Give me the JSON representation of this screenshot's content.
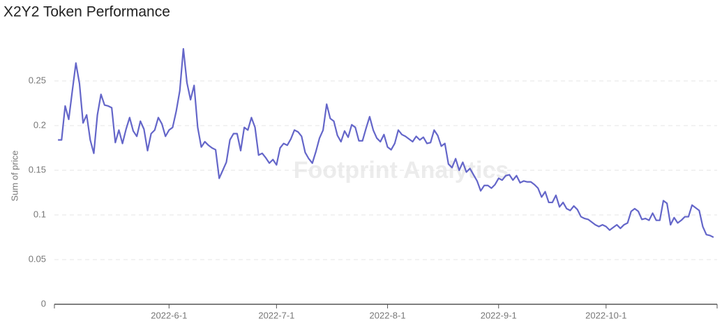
{
  "chart_data": {
    "type": "line",
    "title": "X2Y2 Token Performance",
    "ylabel": "Sum of price",
    "watermark": "Footprint Analytics",
    "x": [
      "2022-5-1",
      "2022-5-2",
      "2022-5-3",
      "2022-5-4",
      "2022-5-5",
      "2022-5-6",
      "2022-5-7",
      "2022-5-8",
      "2022-5-9",
      "2022-5-10",
      "2022-5-11",
      "2022-5-12",
      "2022-5-13",
      "2022-5-14",
      "2022-5-15",
      "2022-5-16",
      "2022-5-17",
      "2022-5-18",
      "2022-5-19",
      "2022-5-20",
      "2022-5-21",
      "2022-5-22",
      "2022-5-23",
      "2022-5-24",
      "2022-5-25",
      "2022-5-26",
      "2022-5-27",
      "2022-5-28",
      "2022-5-29",
      "2022-5-30",
      "2022-5-31",
      "2022-6-1",
      "2022-6-2",
      "2022-6-3",
      "2022-6-4",
      "2022-6-5",
      "2022-6-6",
      "2022-6-7",
      "2022-6-8",
      "2022-6-9",
      "2022-6-10",
      "2022-6-11",
      "2022-6-12",
      "2022-6-13",
      "2022-6-14",
      "2022-6-15",
      "2022-6-16",
      "2022-6-17",
      "2022-6-18",
      "2022-6-19",
      "2022-6-20",
      "2022-6-21",
      "2022-6-22",
      "2022-6-23",
      "2022-6-24",
      "2022-6-25",
      "2022-6-26",
      "2022-6-27",
      "2022-6-28",
      "2022-6-29",
      "2022-6-30",
      "2022-7-1",
      "2022-7-2",
      "2022-7-3",
      "2022-7-4",
      "2022-7-5",
      "2022-7-6",
      "2022-7-7",
      "2022-7-8",
      "2022-7-9",
      "2022-7-10",
      "2022-7-11",
      "2022-7-12",
      "2022-7-13",
      "2022-7-14",
      "2022-7-15",
      "2022-7-16",
      "2022-7-17",
      "2022-7-18",
      "2022-7-19",
      "2022-7-20",
      "2022-7-21",
      "2022-7-22",
      "2022-7-23",
      "2022-7-24",
      "2022-7-25",
      "2022-7-26",
      "2022-7-27",
      "2022-7-28",
      "2022-7-29",
      "2022-7-30",
      "2022-7-31",
      "2022-8-1",
      "2022-8-2",
      "2022-8-3",
      "2022-8-4",
      "2022-8-5",
      "2022-8-6",
      "2022-8-7",
      "2022-8-8",
      "2022-8-9",
      "2022-8-10",
      "2022-8-11",
      "2022-8-12",
      "2022-8-13",
      "2022-8-14",
      "2022-8-15",
      "2022-8-16",
      "2022-8-17",
      "2022-8-18",
      "2022-8-19",
      "2022-8-20",
      "2022-8-21",
      "2022-8-22",
      "2022-8-23",
      "2022-8-24",
      "2022-8-25",
      "2022-8-26",
      "2022-8-27",
      "2022-8-28",
      "2022-8-29",
      "2022-8-30",
      "2022-8-31",
      "2022-9-1",
      "2022-9-2",
      "2022-9-3",
      "2022-9-4",
      "2022-9-5",
      "2022-9-6",
      "2022-9-7",
      "2022-9-8",
      "2022-9-9",
      "2022-9-10",
      "2022-9-11",
      "2022-9-12",
      "2022-9-13",
      "2022-9-14",
      "2022-9-15",
      "2022-9-16",
      "2022-9-17",
      "2022-9-18",
      "2022-9-19",
      "2022-9-20",
      "2022-9-21",
      "2022-9-22",
      "2022-9-23",
      "2022-9-24",
      "2022-9-25",
      "2022-9-26",
      "2022-9-27",
      "2022-9-28",
      "2022-9-29",
      "2022-9-30",
      "2022-10-1",
      "2022-10-2",
      "2022-10-3",
      "2022-10-4",
      "2022-10-5",
      "2022-10-6",
      "2022-10-7",
      "2022-10-8",
      "2022-10-9",
      "2022-10-10",
      "2022-10-11",
      "2022-10-12",
      "2022-10-13",
      "2022-10-14",
      "2022-10-15",
      "2022-10-16",
      "2022-10-17",
      "2022-10-18",
      "2022-10-19",
      "2022-10-20",
      "2022-10-21",
      "2022-10-22",
      "2022-10-23",
      "2022-10-24",
      "2022-10-25",
      "2022-10-26",
      "2022-10-27",
      "2022-10-28",
      "2022-10-29",
      "2022-10-30",
      "2022-10-31"
    ],
    "series": [
      {
        "name": "price",
        "color": "#6466c9",
        "values": [
          0.184,
          0.184,
          0.222,
          0.207,
          0.239,
          0.27,
          0.247,
          0.203,
          0.212,
          0.184,
          0.169,
          0.212,
          0.235,
          0.223,
          0.222,
          0.22,
          0.181,
          0.195,
          0.18,
          0.196,
          0.209,
          0.194,
          0.188,
          0.205,
          0.196,
          0.172,
          0.191,
          0.195,
          0.209,
          0.202,
          0.188,
          0.195,
          0.198,
          0.216,
          0.239,
          0.286,
          0.248,
          0.229,
          0.245,
          0.198,
          0.176,
          0.182,
          0.178,
          0.175,
          0.173,
          0.141,
          0.15,
          0.159,
          0.184,
          0.191,
          0.191,
          0.172,
          0.198,
          0.195,
          0.209,
          0.198,
          0.167,
          0.169,
          0.164,
          0.158,
          0.162,
          0.156,
          0.175,
          0.18,
          0.178,
          0.185,
          0.195,
          0.193,
          0.188,
          0.17,
          0.163,
          0.158,
          0.171,
          0.186,
          0.195,
          0.224,
          0.208,
          0.205,
          0.189,
          0.182,
          0.194,
          0.187,
          0.201,
          0.198,
          0.183,
          0.183,
          0.197,
          0.21,
          0.195,
          0.186,
          0.182,
          0.19,
          0.176,
          0.173,
          0.18,
          0.195,
          0.19,
          0.188,
          0.185,
          0.182,
          0.188,
          0.184,
          0.187,
          0.18,
          0.181,
          0.195,
          0.189,
          0.177,
          0.18,
          0.157,
          0.153,
          0.163,
          0.15,
          0.159,
          0.148,
          0.152,
          0.145,
          0.138,
          0.127,
          0.133,
          0.133,
          0.13,
          0.134,
          0.141,
          0.139,
          0.144,
          0.145,
          0.139,
          0.144,
          0.136,
          0.138,
          0.137,
          0.137,
          0.134,
          0.13,
          0.12,
          0.126,
          0.114,
          0.114,
          0.122,
          0.109,
          0.114,
          0.107,
          0.105,
          0.11,
          0.106,
          0.098,
          0.096,
          0.095,
          0.092,
          0.089,
          0.087,
          0.089,
          0.087,
          0.083,
          0.086,
          0.089,
          0.085,
          0.089,
          0.091,
          0.104,
          0.107,
          0.104,
          0.095,
          0.096,
          0.094,
          0.102,
          0.094,
          0.094,
          0.116,
          0.113,
          0.089,
          0.097,
          0.091,
          0.094,
          0.098,
          0.098,
          0.111,
          0.108,
          0.105,
          0.087,
          0.078,
          0.077,
          0.075
        ]
      }
    ],
    "xlim": [
      "2022-4-30",
      "2022-11-1"
    ],
    "xticks": [
      "2022-6-1",
      "2022-7-1",
      "2022-8-1",
      "2022-9-1",
      "2022-10-1"
    ],
    "ylim": [
      0,
      0.3
    ],
    "yticks": [
      0,
      0.05,
      0.1,
      0.15,
      0.2,
      0.25
    ],
    "grid": true
  }
}
